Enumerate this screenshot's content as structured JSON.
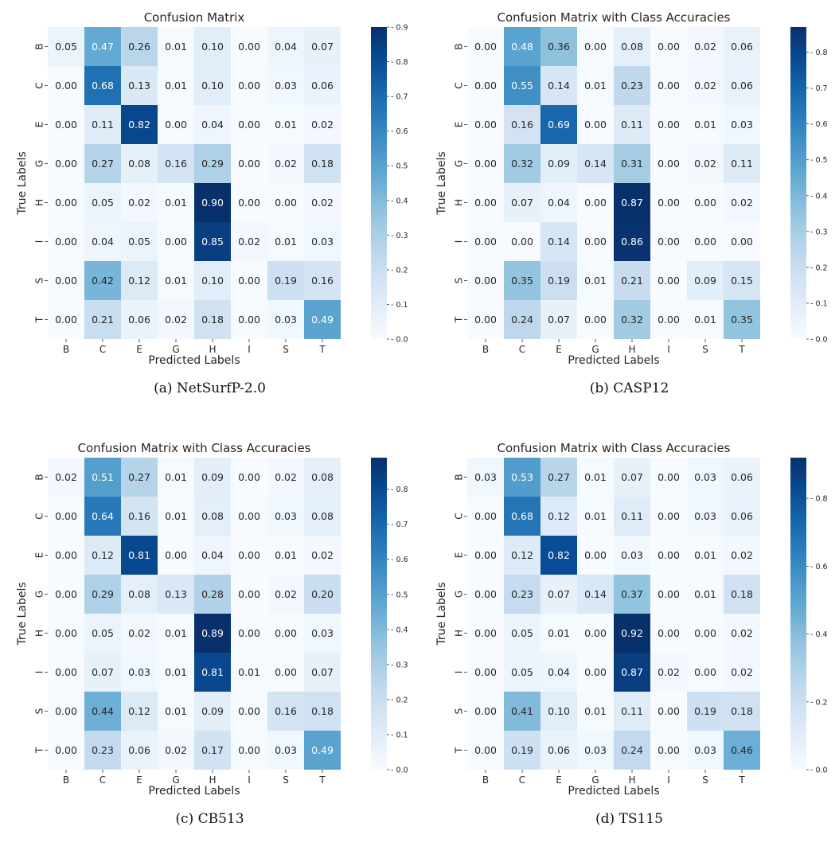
{
  "colors": {
    "cmap_low": "#f7fbff",
    "cmap_high": "#08306b",
    "text_dark": "#262626",
    "text_light": "#ffffff"
  },
  "chart_data": [
    {
      "type": "heatmap",
      "panel_label": "(a) NetSurfP-2.0",
      "title": "Confusion Matrix",
      "xlabel": "Predicted Labels",
      "ylabel": "True Labels",
      "x_categories": [
        "B",
        "C",
        "E",
        "G",
        "H",
        "I",
        "S",
        "T"
      ],
      "y_categories": [
        "B",
        "C",
        "E",
        "G",
        "H",
        "I",
        "S",
        "T"
      ],
      "values": [
        [
          0.05,
          0.47,
          0.26,
          0.01,
          0.1,
          0.0,
          0.04,
          0.07
        ],
        [
          0.0,
          0.68,
          0.13,
          0.01,
          0.1,
          0.0,
          0.03,
          0.06
        ],
        [
          0.0,
          0.11,
          0.82,
          0.0,
          0.04,
          0.0,
          0.01,
          0.02
        ],
        [
          0.0,
          0.27,
          0.08,
          0.16,
          0.29,
          0.0,
          0.02,
          0.18
        ],
        [
          0.0,
          0.05,
          0.02,
          0.01,
          0.9,
          0.0,
          0.0,
          0.02
        ],
        [
          0.0,
          0.04,
          0.05,
          0.0,
          0.85,
          0.02,
          0.01,
          0.03
        ],
        [
          0.0,
          0.42,
          0.12,
          0.01,
          0.1,
          0.0,
          0.19,
          0.16
        ],
        [
          0.0,
          0.21,
          0.06,
          0.02,
          0.18,
          0.0,
          0.03,
          0.49
        ]
      ],
      "vmax": 0.9,
      "colorbar_ticks": [
        "0.0",
        "0.1",
        "0.2",
        "0.3",
        "0.4",
        "0.5",
        "0.6",
        "0.7",
        "0.8",
        "0.9"
      ]
    },
    {
      "type": "heatmap",
      "panel_label": "(b) CASP12",
      "title": "Confusion Matrix with Class Accuracies",
      "xlabel": "Predicted Labels",
      "ylabel": "True Labels",
      "x_categories": [
        "B",
        "C",
        "E",
        "G",
        "H",
        "I",
        "S",
        "T"
      ],
      "y_categories": [
        "B",
        "C",
        "E",
        "G",
        "H",
        "I",
        "S",
        "T"
      ],
      "values": [
        [
          0.0,
          0.48,
          0.36,
          0.0,
          0.08,
          0.0,
          0.02,
          0.06
        ],
        [
          0.0,
          0.55,
          0.14,
          0.01,
          0.23,
          0.0,
          0.02,
          0.06
        ],
        [
          0.0,
          0.16,
          0.69,
          0.0,
          0.11,
          0.0,
          0.01,
          0.03
        ],
        [
          0.0,
          0.32,
          0.09,
          0.14,
          0.31,
          0.0,
          0.02,
          0.11
        ],
        [
          0.0,
          0.07,
          0.04,
          0.0,
          0.87,
          0.0,
          0.0,
          0.02
        ],
        [
          0.0,
          0.0,
          0.14,
          0.0,
          0.86,
          0.0,
          0.0,
          0.0
        ],
        [
          0.0,
          0.35,
          0.19,
          0.01,
          0.21,
          0.0,
          0.09,
          0.15
        ],
        [
          0.0,
          0.24,
          0.07,
          0.0,
          0.32,
          0.0,
          0.01,
          0.35
        ]
      ],
      "vmax": 0.87,
      "colorbar_ticks": [
        "0.0",
        "0.1",
        "0.2",
        "0.3",
        "0.4",
        "0.5",
        "0.6",
        "0.7",
        "0.8"
      ]
    },
    {
      "type": "heatmap",
      "panel_label": "(c) CB513",
      "title": "Confusion Matrix with Class Accuracies",
      "xlabel": "Predicted Labels",
      "ylabel": "True Labels",
      "x_categories": [
        "B",
        "C",
        "E",
        "G",
        "H",
        "I",
        "S",
        "T"
      ],
      "y_categories": [
        "B",
        "C",
        "E",
        "G",
        "H",
        "I",
        "S",
        "T"
      ],
      "values": [
        [
          0.02,
          0.51,
          0.27,
          0.01,
          0.09,
          0.0,
          0.02,
          0.08
        ],
        [
          0.0,
          0.64,
          0.16,
          0.01,
          0.08,
          0.0,
          0.03,
          0.08
        ],
        [
          0.0,
          0.12,
          0.81,
          0.0,
          0.04,
          0.0,
          0.01,
          0.02
        ],
        [
          0.0,
          0.29,
          0.08,
          0.13,
          0.28,
          0.0,
          0.02,
          0.2
        ],
        [
          0.0,
          0.05,
          0.02,
          0.01,
          0.89,
          0.0,
          0.0,
          0.03
        ],
        [
          0.0,
          0.07,
          0.03,
          0.01,
          0.81,
          0.01,
          0.0,
          0.07
        ],
        [
          0.0,
          0.44,
          0.12,
          0.01,
          0.09,
          0.0,
          0.16,
          0.18
        ],
        [
          0.0,
          0.23,
          0.06,
          0.02,
          0.17,
          0.0,
          0.03,
          0.49
        ]
      ],
      "vmax": 0.89,
      "colorbar_ticks": [
        "0.0",
        "0.1",
        "0.2",
        "0.3",
        "0.4",
        "0.5",
        "0.6",
        "0.7",
        "0.8"
      ]
    },
    {
      "type": "heatmap",
      "panel_label": "(d) TS115",
      "title": "Confusion Matrix with Class Accuracies",
      "xlabel": "Predicted Labels",
      "ylabel": "True Labels",
      "x_categories": [
        "B",
        "C",
        "E",
        "G",
        "H",
        "I",
        "S",
        "T"
      ],
      "y_categories": [
        "B",
        "C",
        "E",
        "G",
        "H",
        "I",
        "S",
        "T"
      ],
      "values": [
        [
          0.03,
          0.53,
          0.27,
          0.01,
          0.07,
          0.0,
          0.03,
          0.06
        ],
        [
          0.0,
          0.68,
          0.12,
          0.01,
          0.11,
          0.0,
          0.03,
          0.06
        ],
        [
          0.0,
          0.12,
          0.82,
          0.0,
          0.03,
          0.0,
          0.01,
          0.02
        ],
        [
          0.0,
          0.23,
          0.07,
          0.14,
          0.37,
          0.0,
          0.01,
          0.18
        ],
        [
          0.0,
          0.05,
          0.01,
          0.0,
          0.92,
          0.0,
          0.0,
          0.02
        ],
        [
          0.0,
          0.05,
          0.04,
          0.0,
          0.87,
          0.02,
          0.0,
          0.02
        ],
        [
          0.0,
          0.41,
          0.1,
          0.01,
          0.11,
          0.0,
          0.19,
          0.18
        ],
        [
          0.0,
          0.19,
          0.06,
          0.03,
          0.24,
          0.0,
          0.03,
          0.46
        ]
      ],
      "vmax": 0.92,
      "colorbar_ticks": [
        "0.0",
        "0.2",
        "0.4",
        "0.6",
        "0.8"
      ]
    }
  ]
}
